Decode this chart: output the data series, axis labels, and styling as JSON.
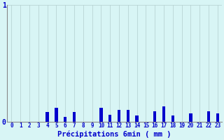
{
  "categories": [
    0,
    1,
    2,
    3,
    4,
    5,
    6,
    7,
    8,
    9,
    10,
    11,
    12,
    13,
    14,
    15,
    16,
    17,
    18,
    19,
    20,
    21,
    22,
    23
  ],
  "values": [
    0,
    0,
    0,
    0,
    0.08,
    0.12,
    0.04,
    0.08,
    0,
    0,
    0.12,
    0.06,
    0.1,
    0.1,
    0.05,
    0,
    0.09,
    0.13,
    0.05,
    0,
    0.07,
    0,
    0.09,
    0.07
  ],
  "bar_color": "#0000cc",
  "bg_color": "#d8f5f5",
  "grid_color": "#b8d4d4",
  "axis_color": "#888888",
  "text_color": "#0000cc",
  "xlabel": "Précipitations 6min ( mm )",
  "ylim": [
    0,
    1.0
  ],
  "yticks": [
    0,
    1
  ],
  "ytick_labels": [
    "0",
    "1"
  ],
  "title": ""
}
